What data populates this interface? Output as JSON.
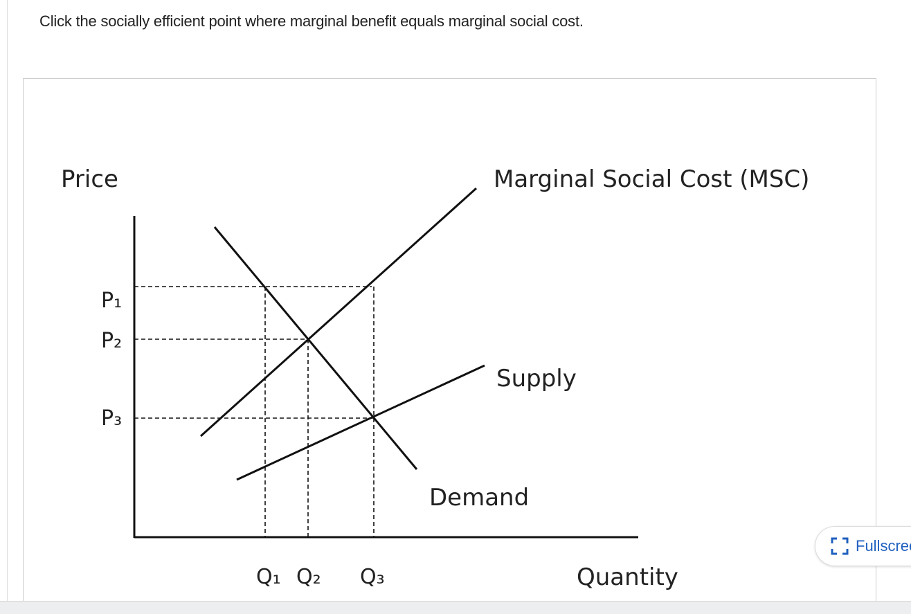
{
  "question": "Click the socially efficient point where marginal benefit equals marginal social cost.",
  "diagram": {
    "y_axis_label": "Price",
    "x_axis_label": "Quantity",
    "curves": {
      "msc": "Marginal Social Cost (MSC)",
      "supply": "Supply",
      "demand": "Demand"
    },
    "price_labels": [
      "P₁",
      "P₂",
      "P₃"
    ],
    "quantity_labels": [
      "Q₁",
      "Q₂",
      "Q₃"
    ]
  },
  "fullscreen_button": "Fullscreen"
}
